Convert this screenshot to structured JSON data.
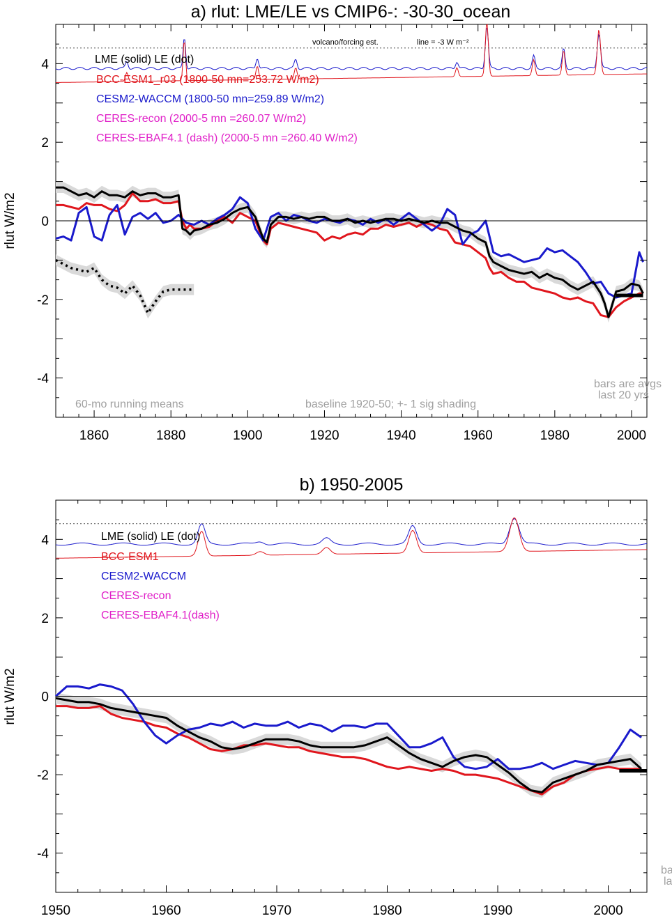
{
  "panel_a": {
    "title": "a) rlut: LME/LE vs CMIP6-: -30-30_ocean",
    "ylabel": "rlut W/m2",
    "volcano_note": "volcano/forcing est.",
    "line_note": "line = -3 W m⁻²",
    "legend": [
      {
        "text": "LME (solid)    LE (dot)",
        "color": "#000000"
      },
      {
        "text": "BCC-ESM1_r03 (1800-50 mn=253.72 W/m2)",
        "color": "#e0161d"
      },
      {
        "text": "CESM2-WACCM (1800-50 mn=259.89 W/m2)",
        "color": "#1a1acc"
      },
      {
        "text": "CERES-recon (2000-5 mn =260.07 W/m2)",
        "color": "#e020c8"
      },
      {
        "text": "CERES-EBAF4.1 (dash) (2000-5 mn =260.40 W/m2)",
        "color": "#e020c8"
      }
    ],
    "footer_left": "60-mo running means",
    "footer_mid": "baseline 1920-50; +- 1 sig shading",
    "footer_right_1": "bars are avgs",
    "footer_right_2": "last 20 yrs"
  },
  "panel_b": {
    "title": "b) 1950-2005",
    "ylabel": "rlut W/m2",
    "legend": [
      {
        "text": "LME (solid)      LE (dot)",
        "color": "#000000"
      },
      {
        "text": "BCC-ESM1",
        "color": "#e0161d"
      },
      {
        "text": "CESM2-WACCM",
        "color": "#1a1acc"
      },
      {
        "text": "CERES-recon",
        "color": "#e020c8"
      },
      {
        "text": "CERES-EBAF4.1(dash)",
        "color": "#e020c8"
      }
    ],
    "footer_right_1": "ba",
    "footer_right_2": "la"
  },
  "colors": {
    "lme": "#000000",
    "bcc": "#e0161d",
    "cesm": "#1a1acc",
    "ceres": "#e020c8",
    "shade": "#d9d9d9",
    "footer": "#a0a0a0"
  },
  "chart_data": [
    {
      "type": "line",
      "title": "a) rlut: LME/LE vs CMIP6-: -30-30_ocean",
      "ylabel": "rlut W/m2",
      "xlim": [
        1850,
        2004
      ],
      "ylim": [
        -5,
        5
      ],
      "xticks": [
        1860,
        1880,
        1900,
        1920,
        1940,
        1960,
        1980,
        2000
      ],
      "yticks": [
        -4,
        -2,
        0,
        2,
        4
      ],
      "volcano_line_y": 4.4,
      "series": [
        {
          "name": "LME (solid)",
          "style": "solid",
          "color": "#000000",
          "x": [
            1850,
            1852,
            1854,
            1856,
            1858,
            1860,
            1862,
            1864,
            1866,
            1868,
            1870,
            1872,
            1874,
            1876,
            1878,
            1880,
            1882,
            1883,
            1884,
            1885,
            1886,
            1888,
            1890,
            1892,
            1894,
            1896,
            1898,
            1900,
            1902,
            1904,
            1905,
            1906,
            1908,
            1910,
            1912,
            1914,
            1916,
            1918,
            1920,
            1922,
            1924,
            1926,
            1928,
            1930,
            1932,
            1934,
            1936,
            1938,
            1940,
            1942,
            1944,
            1946,
            1948,
            1950,
            1952,
            1954,
            1956,
            1958,
            1960,
            1962,
            1963,
            1964,
            1966,
            1968,
            1970,
            1972,
            1974,
            1976,
            1978,
            1980,
            1982,
            1984,
            1986,
            1988,
            1990,
            1992,
            1993,
            1994,
            1996,
            1998,
            2000,
            2002,
            2003
          ],
          "y": [
            0.85,
            0.85,
            0.75,
            0.65,
            0.7,
            0.6,
            0.75,
            0.65,
            0.65,
            0.6,
            0.75,
            0.65,
            0.7,
            0.7,
            0.6,
            0.6,
            0.65,
            -0.2,
            -0.25,
            -0.35,
            -0.25,
            -0.2,
            -0.1,
            -0.05,
            0.05,
            0.2,
            0.3,
            0.35,
            0.1,
            -0.45,
            -0.55,
            -0.1,
            0.1,
            0.1,
            0.05,
            0.1,
            0.05,
            0.1,
            0.1,
            0.0,
            0.0,
            0.05,
            -0.05,
            0.0,
            -0.05,
            0.0,
            0.05,
            0.05,
            0.0,
            0.05,
            0.0,
            -0.05,
            0.0,
            -0.05,
            -0.05,
            -0.15,
            -0.25,
            -0.3,
            -0.45,
            -0.55,
            -0.9,
            -1.05,
            -1.15,
            -1.25,
            -1.3,
            -1.35,
            -1.3,
            -1.45,
            -1.35,
            -1.45,
            -1.5,
            -1.65,
            -1.75,
            -1.65,
            -1.55,
            -1.85,
            -2.1,
            -2.45,
            -1.8,
            -1.75,
            -1.6,
            -1.65,
            -1.85
          ]
        },
        {
          "name": "LE (dot)",
          "style": "dot",
          "color": "#000000",
          "x": [
            1850,
            1852,
            1854,
            1856,
            1858,
            1860,
            1862,
            1864,
            1866,
            1868,
            1870,
            1872,
            1874,
            1876,
            1878,
            1880,
            1882,
            1884,
            1886
          ],
          "y": [
            -1.0,
            -1.1,
            -1.2,
            -1.25,
            -1.3,
            -1.2,
            -1.5,
            -1.65,
            -1.7,
            -1.85,
            -1.65,
            -1.9,
            -2.35,
            -2.05,
            -1.8,
            -1.75,
            -1.75,
            -1.75,
            -1.75
          ]
        },
        {
          "name": "BCC-ESM1_r03 (1800-50 mn=253.72 W/m2)",
          "style": "solid",
          "color": "#e0161d",
          "x": [
            1850,
            1852,
            1854,
            1856,
            1858,
            1860,
            1862,
            1864,
            1866,
            1868,
            1870,
            1872,
            1874,
            1876,
            1878,
            1880,
            1882,
            1883,
            1884,
            1885,
            1886,
            1888,
            1890,
            1892,
            1894,
            1896,
            1898,
            1900,
            1902,
            1904,
            1905,
            1906,
            1908,
            1910,
            1912,
            1914,
            1916,
            1918,
            1920,
            1922,
            1924,
            1926,
            1928,
            1930,
            1932,
            1934,
            1936,
            1938,
            1940,
            1942,
            1944,
            1946,
            1948,
            1950,
            1952,
            1954,
            1956,
            1958,
            1960,
            1962,
            1963,
            1964,
            1966,
            1968,
            1970,
            1972,
            1974,
            1976,
            1978,
            1980,
            1982,
            1984,
            1986,
            1988,
            1990,
            1992,
            1994,
            1996,
            1998,
            2000,
            2002,
            2003
          ],
          "y": [
            0.4,
            0.4,
            0.35,
            0.3,
            0.45,
            0.4,
            0.4,
            0.3,
            0.25,
            0.4,
            0.7,
            0.5,
            0.5,
            0.55,
            0.45,
            0.45,
            0.5,
            0.0,
            -0.2,
            -0.1,
            -0.2,
            -0.2,
            -0.15,
            0.0,
            0.1,
            -0.05,
            0.2,
            0.1,
            0.0,
            -0.5,
            -0.6,
            -0.2,
            -0.05,
            -0.1,
            -0.15,
            -0.2,
            -0.25,
            -0.3,
            -0.5,
            -0.4,
            -0.45,
            -0.35,
            -0.3,
            -0.35,
            -0.2,
            -0.2,
            -0.1,
            -0.15,
            -0.1,
            -0.05,
            -0.15,
            -0.05,
            -0.1,
            -0.2,
            -0.25,
            -0.55,
            -0.6,
            -0.65,
            -0.8,
            -0.95,
            -1.2,
            -1.35,
            -1.3,
            -1.45,
            -1.55,
            -1.55,
            -1.7,
            -1.75,
            -1.8,
            -1.85,
            -1.95,
            -2.0,
            -1.95,
            -2.05,
            -2.1,
            -2.4,
            -2.45,
            -2.2,
            -2.05,
            -1.95,
            -1.85,
            -1.85
          ]
        },
        {
          "name": "CESM2-WACCM (1800-50 mn=259.89 W/m2)",
          "style": "solid",
          "color": "#1a1acc",
          "x": [
            1850,
            1852,
            1854,
            1856,
            1858,
            1860,
            1862,
            1864,
            1866,
            1868,
            1870,
            1872,
            1874,
            1876,
            1878,
            1880,
            1882,
            1884,
            1886,
            1888,
            1890,
            1892,
            1894,
            1896,
            1898,
            1900,
            1902,
            1904,
            1906,
            1908,
            1910,
            1912,
            1914,
            1916,
            1918,
            1920,
            1922,
            1924,
            1926,
            1928,
            1930,
            1932,
            1934,
            1936,
            1938,
            1940,
            1942,
            1944,
            1946,
            1948,
            1950,
            1952,
            1954,
            1956,
            1958,
            1960,
            1962,
            1964,
            1966,
            1968,
            1970,
            1972,
            1974,
            1976,
            1978,
            1980,
            1982,
            1984,
            1986,
            1988,
            1990,
            1992,
            1994,
            1996,
            1998,
            2000,
            2002,
            2003
          ],
          "y": [
            -0.45,
            -0.4,
            -0.5,
            0.2,
            0.35,
            -0.4,
            -0.5,
            0.15,
            0.4,
            -0.35,
            0.1,
            0.2,
            0.05,
            0.2,
            -0.05,
            0.0,
            0.15,
            -0.05,
            -0.1,
            0.0,
            -0.1,
            0.05,
            0.15,
            0.3,
            0.6,
            0.45,
            -0.2,
            -0.5,
            0.1,
            0.2,
            0.0,
            0.15,
            0.1,
            0.0,
            -0.05,
            0.05,
            0.0,
            -0.05,
            0.05,
            0.0,
            -0.1,
            0.05,
            -0.05,
            0.05,
            -0.1,
            0.05,
            0.2,
            0.05,
            -0.1,
            -0.25,
            -0.1,
            0.3,
            0.15,
            -0.6,
            -0.35,
            -0.25,
            0.0,
            -0.8,
            -0.9,
            -0.85,
            -0.95,
            -1.05,
            -1.0,
            -0.95,
            -0.7,
            -0.8,
            -0.75,
            -0.9,
            -1.05,
            -1.3,
            -1.6,
            -1.55,
            -1.85,
            -1.95,
            -1.9,
            -1.85,
            -0.8,
            -1.05
          ]
        }
      ],
      "bars": [
        {
          "name": "LME last 20 yrs",
          "x": [
            1996,
            2003
          ],
          "y": -1.9
        }
      ]
    },
    {
      "type": "line",
      "title": "b) 1950-2005",
      "ylabel": "rlut W/m2",
      "xlim": [
        1950,
        2003.5
      ],
      "ylim": [
        -5,
        5
      ],
      "xticks": [
        1950,
        1960,
        1970,
        1980,
        1990,
        2000
      ],
      "yticks": [
        -4,
        -2,
        0,
        2,
        4
      ],
      "volcano_line_y": 4.4,
      "series": [
        {
          "name": "LME (solid)",
          "style": "solid",
          "color": "#000000",
          "x": [
            1950,
            1951,
            1952,
            1953,
            1954,
            1955,
            1956,
            1957,
            1958,
            1959,
            1960,
            1961,
            1962,
            1963,
            1964,
            1965,
            1966,
            1967,
            1968,
            1969,
            1970,
            1971,
            1972,
            1973,
            1974,
            1975,
            1976,
            1977,
            1978,
            1979,
            1980,
            1981,
            1982,
            1983,
            1984,
            1985,
            1986,
            1987,
            1988,
            1989,
            1990,
            1991,
            1992,
            1993,
            1994,
            1995,
            1996,
            1997,
            1998,
            1999,
            2000,
            2001,
            2002,
            2003
          ],
          "y": [
            -0.05,
            -0.1,
            -0.15,
            -0.15,
            -0.2,
            -0.3,
            -0.35,
            -0.4,
            -0.45,
            -0.5,
            -0.55,
            -0.75,
            -0.9,
            -1.05,
            -1.15,
            -1.3,
            -1.35,
            -1.3,
            -1.2,
            -1.1,
            -1.1,
            -1.1,
            -1.15,
            -1.25,
            -1.3,
            -1.3,
            -1.3,
            -1.3,
            -1.25,
            -1.15,
            -1.05,
            -1.25,
            -1.45,
            -1.6,
            -1.7,
            -1.8,
            -1.65,
            -1.55,
            -1.5,
            -1.55,
            -1.75,
            -1.95,
            -2.2,
            -2.4,
            -2.45,
            -2.2,
            -2.1,
            -2.0,
            -1.9,
            -1.75,
            -1.7,
            -1.65,
            -1.6,
            -1.85
          ]
        },
        {
          "name": "BCC-ESM1",
          "style": "solid",
          "color": "#e0161d",
          "x": [
            1950,
            1951,
            1952,
            1953,
            1954,
            1955,
            1956,
            1957,
            1958,
            1959,
            1960,
            1961,
            1962,
            1963,
            1964,
            1965,
            1966,
            1967,
            1968,
            1969,
            1970,
            1971,
            1972,
            1973,
            1974,
            1975,
            1976,
            1977,
            1978,
            1979,
            1980,
            1981,
            1982,
            1983,
            1984,
            1985,
            1986,
            1987,
            1988,
            1989,
            1990,
            1991,
            1992,
            1993,
            1994,
            1995,
            1996,
            1997,
            1998,
            1999,
            2000,
            2001,
            2002,
            2003
          ],
          "y": [
            -0.25,
            -0.25,
            -0.3,
            -0.3,
            -0.25,
            -0.45,
            -0.55,
            -0.6,
            -0.65,
            -0.75,
            -0.8,
            -0.95,
            -1.05,
            -1.2,
            -1.35,
            -1.4,
            -1.35,
            -1.25,
            -1.25,
            -1.2,
            -1.25,
            -1.3,
            -1.3,
            -1.4,
            -1.45,
            -1.5,
            -1.55,
            -1.55,
            -1.6,
            -1.7,
            -1.8,
            -1.85,
            -1.8,
            -1.85,
            -1.9,
            -1.85,
            -1.9,
            -2.0,
            -2.0,
            -2.05,
            -2.1,
            -2.2,
            -2.3,
            -2.4,
            -2.5,
            -2.3,
            -2.2,
            -2.0,
            -1.9,
            -1.85,
            -1.8,
            -1.85,
            -1.85,
            -1.85
          ]
        },
        {
          "name": "CESM2-WACCM",
          "style": "solid",
          "color": "#1a1acc",
          "x": [
            1950,
            1951,
            1952,
            1953,
            1954,
            1955,
            1956,
            1957,
            1958,
            1959,
            1960,
            1961,
            1962,
            1963,
            1964,
            1965,
            1966,
            1967,
            1968,
            1969,
            1970,
            1971,
            1972,
            1973,
            1974,
            1975,
            1976,
            1977,
            1978,
            1979,
            1980,
            1981,
            1982,
            1983,
            1984,
            1985,
            1986,
            1987,
            1988,
            1989,
            1990,
            1991,
            1992,
            1993,
            1994,
            1995,
            1996,
            1997,
            1998,
            1999,
            2000,
            2001,
            2002,
            2003
          ],
          "y": [
            0.0,
            0.25,
            0.25,
            0.2,
            0.3,
            0.25,
            0.15,
            -0.2,
            -0.65,
            -1.0,
            -1.2,
            -1.0,
            -0.85,
            -0.8,
            -0.7,
            -0.75,
            -0.65,
            -0.8,
            -0.7,
            -0.75,
            -0.75,
            -0.65,
            -0.8,
            -0.7,
            -0.75,
            -0.9,
            -0.75,
            -0.75,
            -0.8,
            -0.7,
            -0.7,
            -1.0,
            -1.3,
            -1.3,
            -1.2,
            -1.05,
            -1.55,
            -1.8,
            -1.85,
            -1.8,
            -1.6,
            -1.85,
            -1.85,
            -1.8,
            -1.7,
            -1.85,
            -1.75,
            -1.65,
            -1.7,
            -1.75,
            -1.7,
            -1.3,
            -0.85,
            -1.05
          ]
        }
      ],
      "bars": [
        {
          "name": "LME last 20 yrs",
          "x": [
            2001,
            2003.5
          ],
          "y": -1.9
        }
      ]
    }
  ]
}
